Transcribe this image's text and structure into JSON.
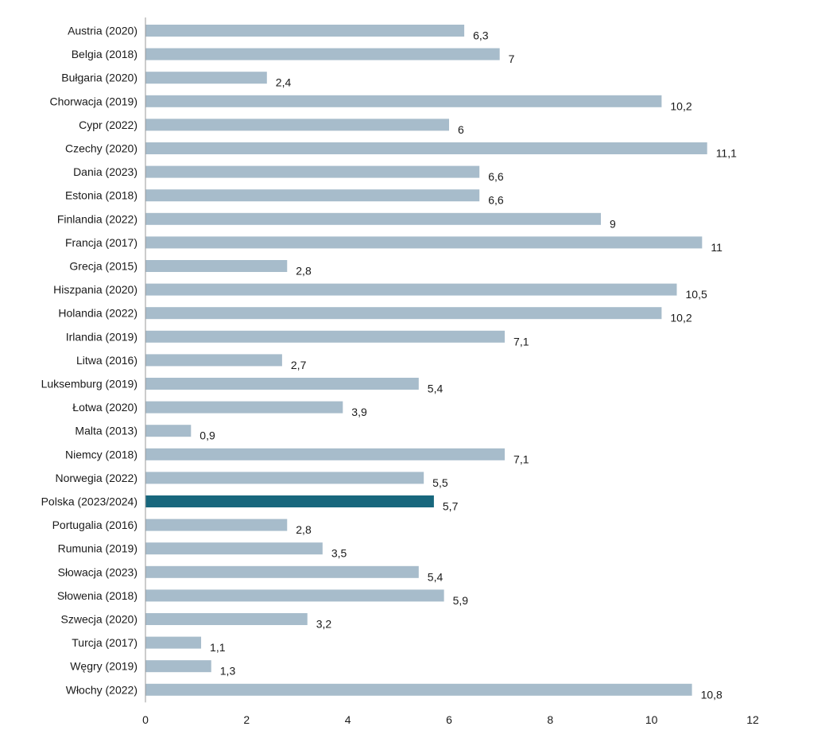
{
  "chart_data": {
    "type": "bar",
    "orientation": "horizontal",
    "categories": [
      "Austria (2020)",
      "Belgia (2018)",
      "Bułgaria (2020)",
      "Chorwacja (2019)",
      "Cypr (2022)",
      "Czechy (2020)",
      "Dania (2023)",
      "Estonia (2018)",
      "Finlandia (2022)",
      "Francja (2017)",
      "Grecja (2015)",
      "Hiszpania (2020)",
      "Holandia (2022)",
      "Irlandia (2019)",
      "Litwa (2016)",
      "Luksemburg (2019)",
      "Łotwa (2020)",
      "Malta (2013)",
      "Niemcy (2018)",
      "Norwegia (2022)",
      "Polska (2023/2024)",
      "Portugalia (2016)",
      "Rumunia (2019)",
      "Słowacja (2023)",
      "Słowenia (2018)",
      "Szwecja (2020)",
      "Turcja (2017)",
      "Węgry (2019)",
      "Włochy (2022)"
    ],
    "values": [
      6.3,
      7,
      2.4,
      10.2,
      6,
      11.1,
      6.6,
      6.6,
      9,
      11,
      2.8,
      10.5,
      10.2,
      7.1,
      2.7,
      5.4,
      3.9,
      0.9,
      7.1,
      5.5,
      5.7,
      2.8,
      3.5,
      5.4,
      5.9,
      3.2,
      1.1,
      1.3,
      10.8
    ],
    "value_labels": [
      "6,3",
      "7",
      "2,4",
      "10,2",
      "6",
      "11,1",
      "6,6",
      "6,6",
      "9",
      "11",
      "2,8",
      "10,5",
      "10,2",
      "7,1",
      "2,7",
      "5,4",
      "3,9",
      "0,9",
      "7,1",
      "5,5",
      "5,7",
      "2,8",
      "3,5",
      "5,4",
      "5,9",
      "3,2",
      "1,1",
      "1,3",
      "10,8"
    ],
    "highlight_category": "Polska (2023/2024)",
    "xlim": [
      0,
      12
    ],
    "x_ticks": [
      0,
      2,
      4,
      6,
      8,
      10,
      12
    ],
    "x_tick_labels": [
      "0",
      "2",
      "4",
      "6",
      "8",
      "10",
      "12"
    ],
    "title": "",
    "xlabel": "",
    "ylabel": "",
    "grid": false,
    "legend": "none",
    "colors": {
      "bar": "#a7bccb",
      "highlight": "#18677d",
      "axis": "#9a9a9a",
      "text": "#1a1a1a"
    }
  }
}
